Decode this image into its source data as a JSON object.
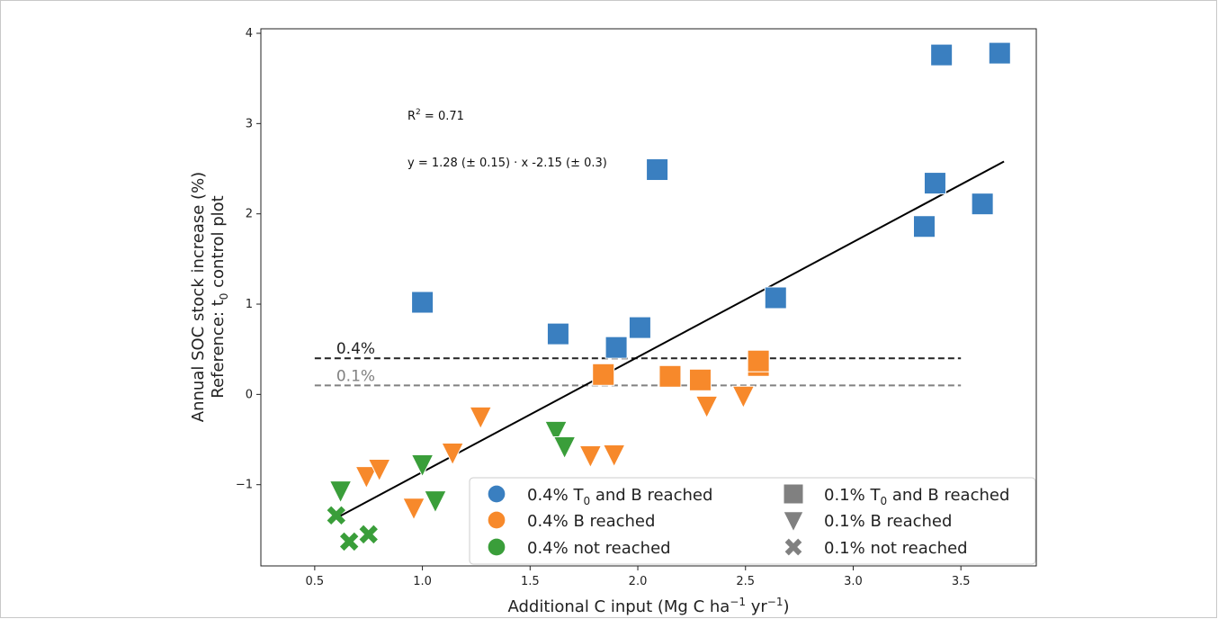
{
  "chart_data": {
    "type": "scatter",
    "xlabel": "Additional C input (Mg C ha",
    "xlabel_sup1": "−1",
    "xlabel_mid": " yr",
    "xlabel_sup2": "−1",
    "xlabel_end": ")",
    "ylabel_line1": "Annual SOC stock increase (%)",
    "ylabel_line2_pre": "Reference: t",
    "ylabel_line2_sub": "0",
    "ylabel_line2_post": " control plot",
    "xlim": [
      0.25,
      3.85
    ],
    "ylim": [
      -1.9,
      4.05
    ],
    "xticks": [
      0.5,
      1.0,
      1.5,
      2.0,
      2.5,
      3.0,
      3.5
    ],
    "xtick_labels": [
      "0.5",
      "1.0",
      "1.5",
      "2.0",
      "2.5",
      "3.0",
      "3.5"
    ],
    "yticks": [
      -1,
      0,
      1,
      2,
      3,
      4
    ],
    "ytick_labels": [
      "−1",
      "0",
      "1",
      "2",
      "3",
      "4"
    ],
    "grid": false,
    "legend_position": "bottom-right",
    "colors": {
      "blue": "#3a7fc0",
      "orange": "#f7892b",
      "green": "#3a9e3a",
      "shape_gray": "#808080"
    },
    "annotations": {
      "r2_pre": "R",
      "r2_sup": "2",
      "r2_post": " = 0.71",
      "equation": "y = 1.28 (± 0.15) · x -2.15 (± 0.3)"
    },
    "regression_line": {
      "x": [
        0.6,
        3.7
      ],
      "y": [
        -1.37,
        2.58
      ]
    },
    "hlines": [
      {
        "label": "0.4%",
        "y": 0.4,
        "x": [
          0.5,
          3.5
        ],
        "color": "#222222"
      },
      {
        "label": "0.1%",
        "y": 0.1,
        "x": [
          0.5,
          3.5
        ],
        "color": "#808080"
      }
    ],
    "series": [
      {
        "group": "T0 and B reached",
        "marker": "square",
        "color": "blue",
        "points": [
          [
            1.0,
            1.02
          ],
          [
            1.63,
            0.67
          ],
          [
            1.9,
            0.52
          ],
          [
            2.01,
            0.74
          ],
          [
            2.09,
            2.49
          ],
          [
            2.64,
            1.07
          ],
          [
            3.33,
            1.86
          ],
          [
            3.38,
            2.34
          ],
          [
            3.41,
            3.76
          ],
          [
            3.6,
            2.11
          ],
          [
            3.68,
            3.78
          ]
        ]
      },
      {
        "group": "T0 and B reached",
        "marker": "square",
        "color": "orange",
        "points": [
          [
            1.84,
            0.22
          ],
          [
            2.15,
            0.2
          ],
          [
            2.29,
            0.16
          ],
          [
            2.56,
            0.32
          ],
          [
            2.56,
            0.37
          ]
        ]
      },
      {
        "group": "B reached",
        "marker": "triangle",
        "color": "orange",
        "points": [
          [
            0.74,
            -0.9
          ],
          [
            0.8,
            -0.82
          ],
          [
            0.96,
            -1.25
          ],
          [
            1.14,
            -0.64
          ],
          [
            1.27,
            -0.24
          ],
          [
            1.78,
            -0.67
          ],
          [
            1.89,
            -0.66
          ],
          [
            2.32,
            -0.12
          ],
          [
            2.49,
            -0.01
          ]
        ]
      },
      {
        "group": "B reached",
        "marker": "triangle",
        "color": "green",
        "points": [
          [
            0.62,
            -1.06
          ],
          [
            1.0,
            -0.77
          ],
          [
            1.06,
            -1.17
          ],
          [
            1.62,
            -0.4
          ],
          [
            1.66,
            -0.57
          ]
        ]
      },
      {
        "group": "not reached",
        "marker": "x",
        "color": "green",
        "points": [
          [
            0.6,
            -1.34
          ],
          [
            0.66,
            -1.63
          ],
          [
            0.75,
            -1.55
          ]
        ]
      }
    ],
    "legend": {
      "entries": [
        {
          "label_pre": "0.4% T",
          "label_sub": "0",
          "label_post": " and B reached",
          "marker": "circle",
          "color": "#3a7fc0"
        },
        {
          "label_pre": "0.4% B reached",
          "label_sub": "",
          "label_post": "",
          "marker": "circle",
          "color": "#f7892b"
        },
        {
          "label_pre": "0.4% not reached",
          "label_sub": "",
          "label_post": "",
          "marker": "circle",
          "color": "#3a9e3a"
        },
        {
          "label_pre": "0.1% T",
          "label_sub": "0",
          "label_post": " and B reached",
          "marker": "square",
          "color": "#808080"
        },
        {
          "label_pre": "0.1% B reached",
          "label_sub": "",
          "label_post": "",
          "marker": "triangle",
          "color": "#808080"
        },
        {
          "label_pre": "0.1% not reached",
          "label_sub": "",
          "label_post": "",
          "marker": "x",
          "color": "#808080"
        }
      ]
    }
  }
}
